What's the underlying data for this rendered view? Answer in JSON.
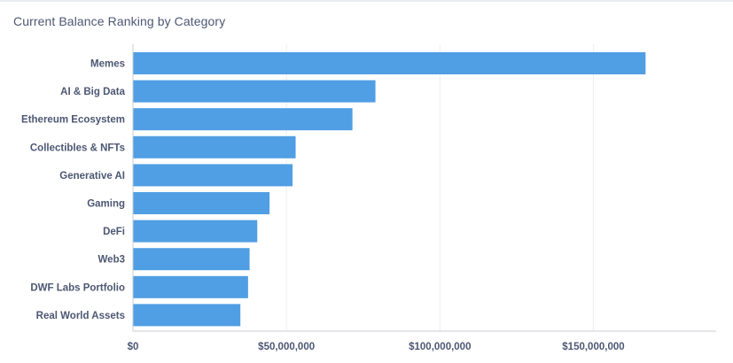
{
  "card": {
    "title": "Current Balance Ranking by Category"
  },
  "colors": {
    "bar": "#509ee3",
    "gridline": "#eeeeee",
    "axis": "#c8cdd3",
    "text": "#4c5773"
  },
  "chart_data": {
    "type": "bar",
    "orientation": "horizontal",
    "title": "Current Balance Ranking by Category",
    "xlabel": "",
    "ylabel": "",
    "categories": [
      "Memes",
      "AI & Big Data",
      "Ethereum Ecosystem",
      "Collectibles & NFTs",
      "Generative AI",
      "Gaming",
      "DeFi",
      "Web3",
      "DWF Labs Portfolio",
      "Real World Assets"
    ],
    "values": [
      167000000,
      79000000,
      71500000,
      53000000,
      52000000,
      44500000,
      40500000,
      38000000,
      37500000,
      35000000
    ],
    "xlim": [
      0,
      190000000
    ],
    "x_ticks": [
      0,
      50000000,
      100000000,
      150000000
    ],
    "x_tick_labels": [
      "$0",
      "$50,000,000",
      "$100,000,000",
      "$150,000,000"
    ],
    "grid": "vertical",
    "legend": "none"
  }
}
